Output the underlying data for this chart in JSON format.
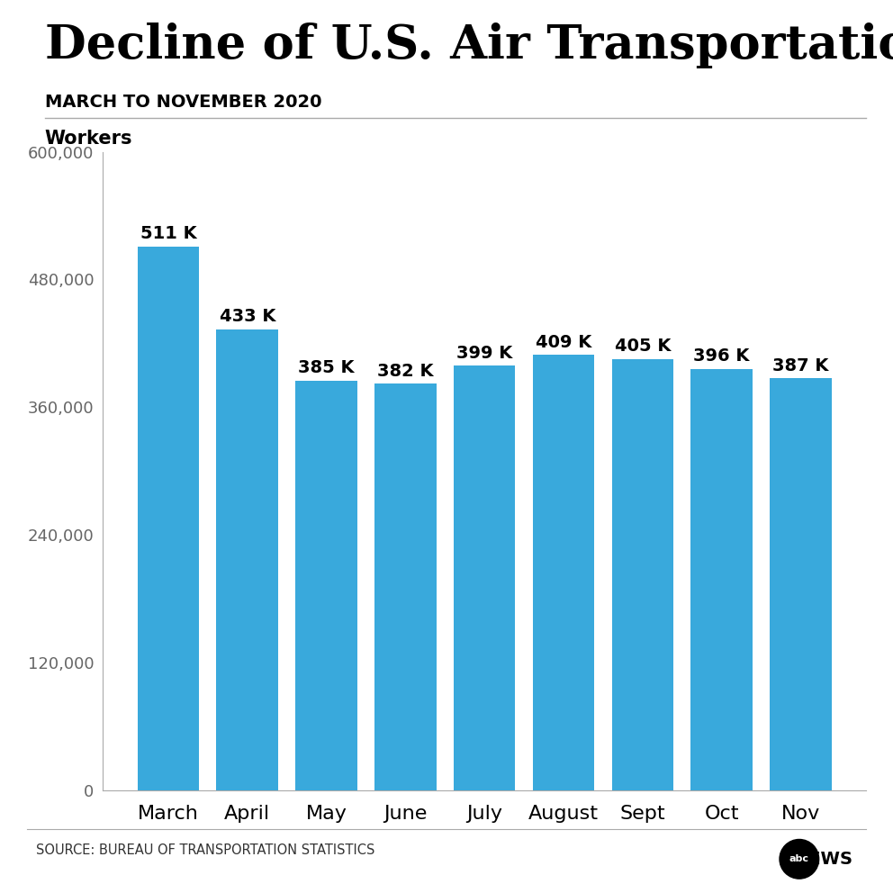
{
  "title": "Decline of U.S. Air Transportation Employment",
  "subtitle": "MARCH TO NOVEMBER 2020",
  "ylabel": "Workers",
  "categories": [
    "March",
    "April",
    "May",
    "June",
    "July",
    "August",
    "Sept",
    "Oct",
    "Nov"
  ],
  "values": [
    511000,
    433000,
    385000,
    382000,
    399000,
    409000,
    405000,
    396000,
    387000
  ],
  "labels": [
    "511 K",
    "433 K",
    "385 K",
    "382 K",
    "399 K",
    "409 K",
    "405 K",
    "396 K",
    "387 K"
  ],
  "bar_color": "#39a9dc",
  "ylim": [
    0,
    600000
  ],
  "yticks": [
    0,
    120000,
    240000,
    360000,
    480000,
    600000
  ],
  "ytick_labels": [
    "0",
    "120,000",
    "240,000",
    "360,000",
    "480,000",
    "600,000"
  ],
  "source_text": "SOURCE: BUREAU OF TRANSPORTATION STATISTICS",
  "background_color": "#ffffff",
  "title_fontsize": 38,
  "subtitle_fontsize": 14,
  "ylabel_fontsize": 15,
  "tick_fontsize": 13,
  "label_fontsize": 14,
  "xtick_fontsize": 16
}
